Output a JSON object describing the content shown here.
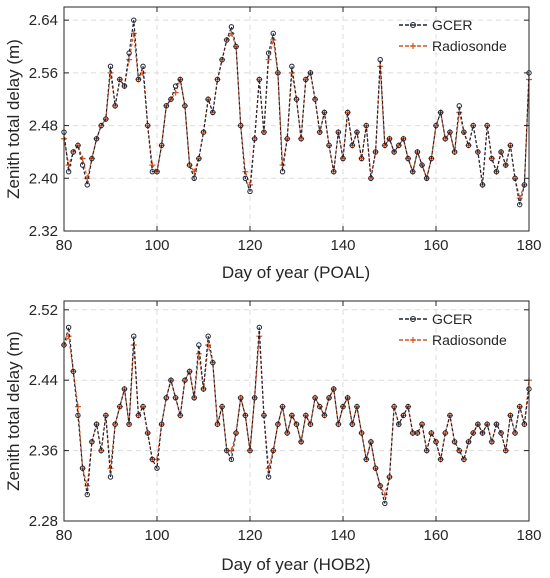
{
  "chart_data": [
    {
      "type": "line",
      "xlabel": "Day of year (POAL)",
      "ylabel": "Zenith total delay (m)",
      "xlim": [
        80,
        180
      ],
      "ylim": [
        2.32,
        2.66
      ],
      "xticks": [
        80,
        100,
        120,
        140,
        160,
        180
      ],
      "yticks": [
        2.32,
        2.4,
        2.48,
        2.56,
        2.64
      ],
      "xtick_labels": [
        "80",
        "100",
        "120",
        "140",
        "160",
        "180"
      ],
      "ytick_labels": [
        "2.32",
        "2.40",
        "2.48",
        "2.56",
        "2.64"
      ],
      "grid": true,
      "legend_position": "top-right",
      "series": [
        {
          "name": "GCER",
          "color": "#1f2433",
          "style": "dashed line with open circle markers",
          "x": [
            80,
            81,
            82,
            83,
            84,
            85,
            86,
            87,
            88,
            89,
            90,
            91,
            92,
            93,
            94,
            95,
            96,
            97,
            98,
            99,
            100,
            101,
            102,
            103,
            104,
            105,
            106,
            107,
            108,
            109,
            110,
            111,
            112,
            113,
            114,
            115,
            116,
            117,
            118,
            119,
            120,
            121,
            122,
            123,
            124,
            125,
            126,
            127,
            128,
            129,
            130,
            131,
            132,
            133,
            134,
            135,
            136,
            137,
            138,
            139,
            140,
            141,
            142,
            143,
            144,
            145,
            146,
            147,
            148,
            149,
            150,
            151,
            152,
            153,
            154,
            155,
            156,
            157,
            158,
            159,
            160,
            161,
            162,
            163,
            164,
            165,
            166,
            167,
            168,
            169,
            170,
            171,
            172,
            173,
            174,
            175,
            176,
            177,
            178,
            179,
            180
          ],
          "y": [
            2.47,
            2.41,
            2.44,
            2.45,
            2.42,
            2.39,
            2.43,
            2.46,
            2.48,
            2.49,
            2.57,
            2.51,
            2.55,
            2.54,
            2.59,
            2.64,
            2.55,
            2.57,
            2.48,
            2.41,
            2.41,
            2.45,
            2.51,
            2.52,
            2.54,
            2.55,
            2.51,
            2.42,
            2.4,
            2.43,
            2.47,
            2.52,
            2.5,
            2.55,
            2.58,
            2.61,
            2.63,
            2.6,
            2.48,
            2.4,
            2.38,
            2.46,
            2.55,
            2.47,
            2.59,
            2.62,
            2.56,
            2.41,
            2.46,
            2.57,
            2.52,
            2.46,
            2.55,
            2.56,
            2.52,
            2.47,
            2.5,
            2.45,
            2.41,
            2.47,
            2.43,
            2.5,
            2.45,
            2.47,
            2.43,
            2.48,
            2.4,
            2.44,
            2.58,
            2.45,
            2.46,
            2.44,
            2.45,
            2.46,
            2.43,
            2.41,
            2.44,
            2.42,
            2.4,
            2.43,
            2.48,
            2.5,
            2.46,
            2.47,
            2.44,
            2.51,
            2.47,
            2.45,
            2.48,
            2.44,
            2.39,
            2.48,
            2.43,
            2.41,
            2.44,
            2.42,
            2.45,
            2.4,
            2.36,
            2.39,
            2.56
          ]
        },
        {
          "name": "Radiosonde",
          "color": "#d9541e",
          "style": "dashed line with plus markers",
          "x": [
            80,
            81,
            82,
            83,
            84,
            85,
            86,
            87,
            88,
            89,
            90,
            91,
            92,
            93,
            94,
            95,
            96,
            97,
            98,
            99,
            100,
            101,
            102,
            103,
            104,
            105,
            106,
            107,
            108,
            109,
            110,
            111,
            112,
            113,
            114,
            115,
            116,
            117,
            118,
            119,
            120,
            121,
            122,
            123,
            124,
            125,
            126,
            127,
            128,
            129,
            130,
            131,
            132,
            133,
            134,
            135,
            136,
            137,
            138,
            139,
            140,
            141,
            142,
            143,
            144,
            145,
            146,
            147,
            148,
            149,
            150,
            151,
            152,
            153,
            154,
            155,
            156,
            157,
            158,
            159,
            160,
            161,
            162,
            163,
            164,
            165,
            166,
            167,
            168,
            169,
            170,
            171,
            172,
            173,
            174,
            175,
            176,
            177,
            178,
            179,
            180
          ],
          "y": [
            2.46,
            2.42,
            2.44,
            2.45,
            2.43,
            2.4,
            2.43,
            2.46,
            2.48,
            2.49,
            2.56,
            2.51,
            2.55,
            2.54,
            2.58,
            2.62,
            2.55,
            2.56,
            2.48,
            2.42,
            2.41,
            2.45,
            2.51,
            2.52,
            2.53,
            2.55,
            2.51,
            2.42,
            2.41,
            2.43,
            2.47,
            2.52,
            2.5,
            2.55,
            2.58,
            2.61,
            2.62,
            2.6,
            2.48,
            2.41,
            2.39,
            2.46,
            2.55,
            2.47,
            2.58,
            2.61,
            2.56,
            2.42,
            2.46,
            2.56,
            2.52,
            2.46,
            2.55,
            2.56,
            2.52,
            2.47,
            2.5,
            2.45,
            2.41,
            2.47,
            2.43,
            2.5,
            2.45,
            2.47,
            2.43,
            2.48,
            2.4,
            2.44,
            2.57,
            2.45,
            2.46,
            2.44,
            2.45,
            2.46,
            2.43,
            2.41,
            2.44,
            2.42,
            2.4,
            2.43,
            2.48,
            2.5,
            2.46,
            2.47,
            2.44,
            2.5,
            2.47,
            2.45,
            2.48,
            2.44,
            2.39,
            2.48,
            2.43,
            2.41,
            2.44,
            2.42,
            2.45,
            2.4,
            2.37,
            2.39,
            2.55
          ]
        }
      ]
    },
    {
      "type": "line",
      "xlabel": "Day of year (HOB2)",
      "ylabel": "Zenith total delay (m)",
      "xlim": [
        80,
        180
      ],
      "ylim": [
        2.28,
        2.53
      ],
      "xticks": [
        80,
        100,
        120,
        140,
        160,
        180
      ],
      "yticks": [
        2.28,
        2.36,
        2.44,
        2.52
      ],
      "xtick_labels": [
        "80",
        "100",
        "120",
        "140",
        "160",
        "180"
      ],
      "ytick_labels": [
        "2.28",
        "2.36",
        "2.44",
        "2.52"
      ],
      "grid": true,
      "legend_position": "top-right",
      "series": [
        {
          "name": "GCER",
          "color": "#1f2433",
          "style": "dashed line with open circle markers",
          "x": [
            80,
            81,
            82,
            83,
            84,
            85,
            86,
            87,
            88,
            89,
            90,
            91,
            92,
            93,
            94,
            95,
            96,
            97,
            98,
            99,
            100,
            101,
            102,
            103,
            104,
            105,
            106,
            107,
            108,
            109,
            110,
            111,
            112,
            113,
            114,
            115,
            116,
            117,
            118,
            119,
            120,
            121,
            122,
            123,
            124,
            125,
            126,
            127,
            128,
            129,
            130,
            131,
            132,
            133,
            134,
            135,
            136,
            137,
            138,
            139,
            140,
            141,
            142,
            143,
            144,
            145,
            146,
            147,
            148,
            149,
            150,
            151,
            152,
            153,
            154,
            155,
            156,
            157,
            158,
            159,
            160,
            161,
            162,
            163,
            164,
            165,
            166,
            167,
            168,
            169,
            170,
            171,
            172,
            173,
            174,
            175,
            176,
            177,
            178,
            179,
            180
          ],
          "y": [
            2.48,
            2.5,
            2.45,
            2.4,
            2.34,
            2.31,
            2.37,
            2.39,
            2.36,
            2.4,
            2.33,
            2.39,
            2.41,
            2.43,
            2.39,
            2.49,
            2.4,
            2.41,
            2.38,
            2.35,
            2.34,
            2.39,
            2.42,
            2.44,
            2.42,
            2.4,
            2.44,
            2.45,
            2.42,
            2.48,
            2.43,
            2.49,
            2.46,
            2.39,
            2.41,
            2.36,
            2.35,
            2.38,
            2.42,
            2.4,
            2.36,
            2.42,
            2.5,
            2.4,
            2.33,
            2.36,
            2.39,
            2.41,
            2.38,
            2.4,
            2.39,
            2.37,
            2.4,
            2.39,
            2.42,
            2.41,
            2.4,
            2.42,
            2.43,
            2.39,
            2.41,
            2.42,
            2.39,
            2.41,
            2.38,
            2.35,
            2.37,
            2.34,
            2.32,
            2.3,
            2.33,
            2.41,
            2.39,
            2.4,
            2.41,
            2.38,
            2.38,
            2.39,
            2.36,
            2.38,
            2.37,
            2.35,
            2.38,
            2.4,
            2.37,
            2.36,
            2.35,
            2.37,
            2.38,
            2.39,
            2.38,
            2.39,
            2.37,
            2.39,
            2.38,
            2.36,
            2.4,
            2.38,
            2.41,
            2.39,
            2.43
          ]
        },
        {
          "name": "Radiosonde",
          "color": "#d9541e",
          "style": "dashed line with plus markers",
          "x": [
            80,
            81,
            82,
            83,
            84,
            85,
            86,
            87,
            88,
            89,
            90,
            91,
            92,
            93,
            94,
            95,
            96,
            97,
            98,
            99,
            100,
            101,
            102,
            103,
            104,
            105,
            106,
            107,
            108,
            109,
            110,
            111,
            112,
            113,
            114,
            115,
            116,
            117,
            118,
            119,
            120,
            121,
            122,
            123,
            124,
            125,
            126,
            127,
            128,
            129,
            130,
            131,
            132,
            133,
            134,
            135,
            136,
            137,
            138,
            139,
            140,
            141,
            142,
            143,
            144,
            145,
            146,
            147,
            148,
            149,
            150,
            151,
            152,
            153,
            154,
            155,
            156,
            157,
            158,
            159,
            160,
            161,
            162,
            163,
            164,
            165,
            166,
            167,
            168,
            169,
            170,
            171,
            172,
            173,
            174,
            175,
            176,
            177,
            178,
            179,
            180
          ],
          "y": [
            2.48,
            2.49,
            2.45,
            2.41,
            2.34,
            2.32,
            2.37,
            2.39,
            2.36,
            2.4,
            2.34,
            2.39,
            2.41,
            2.43,
            2.39,
            2.48,
            2.4,
            2.41,
            2.38,
            2.35,
            2.35,
            2.39,
            2.42,
            2.44,
            2.42,
            2.4,
            2.44,
            2.45,
            2.42,
            2.47,
            2.43,
            2.48,
            2.46,
            2.39,
            2.41,
            2.36,
            2.36,
            2.38,
            2.42,
            2.4,
            2.36,
            2.42,
            2.49,
            2.4,
            2.34,
            2.36,
            2.39,
            2.41,
            2.38,
            2.4,
            2.39,
            2.37,
            2.4,
            2.39,
            2.42,
            2.41,
            2.4,
            2.42,
            2.43,
            2.39,
            2.41,
            2.42,
            2.39,
            2.41,
            2.38,
            2.35,
            2.37,
            2.34,
            2.32,
            2.31,
            2.33,
            2.41,
            2.39,
            2.4,
            2.41,
            2.38,
            2.38,
            2.39,
            2.36,
            2.38,
            2.37,
            2.35,
            2.38,
            2.4,
            2.37,
            2.36,
            2.35,
            2.37,
            2.38,
            2.39,
            2.38,
            2.39,
            2.37,
            2.39,
            2.38,
            2.36,
            2.4,
            2.38,
            2.41,
            2.39,
            2.44
          ]
        }
      ]
    }
  ]
}
